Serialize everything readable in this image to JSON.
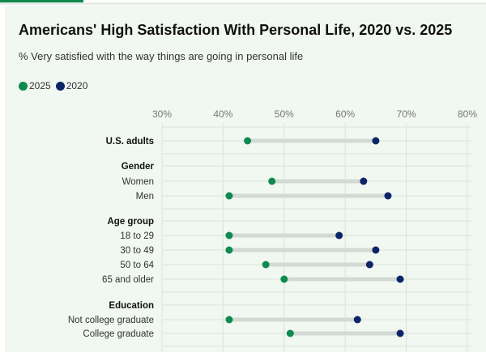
{
  "title": "Americans' High Satisfaction With Personal Life, 2020 vs. 2025",
  "subtitle": "% Very satisfied with the way things are going in personal life",
  "colors": {
    "2025": "#0f8a4f",
    "2020": "#0c2468",
    "connector": "#d3d9d4",
    "grid": "#dbe3dc",
    "background": "#f1f7f1"
  },
  "legend": [
    {
      "label": "2025",
      "color": "#0f8a4f"
    },
    {
      "label": "2020",
      "color": "#0c2468"
    }
  ],
  "chart_data": {
    "type": "dumbbell",
    "title": "Americans' High Satisfaction With Personal Life, 2020 vs. 2025",
    "subtitle": "% Very satisfied with the way things are going in personal life",
    "xlim": [
      30,
      80
    ],
    "x_ticks": [
      "30%",
      "40%",
      "50%",
      "60%",
      "70%",
      "80%"
    ],
    "x_tick_values": [
      30,
      40,
      50,
      60,
      70,
      80
    ],
    "grid": true,
    "legend_position": "top-left",
    "series_names": [
      "2025",
      "2020"
    ],
    "rows": [
      {
        "label": "U.S. adults",
        "header": true,
        "v2025": 44,
        "v2020": 65
      },
      {
        "label": "Gender",
        "header": true
      },
      {
        "label": "Women",
        "v2025": 48,
        "v2020": 63
      },
      {
        "label": "Men",
        "v2025": 41,
        "v2020": 67
      },
      {
        "label": "Age group",
        "header": true
      },
      {
        "label": "18 to 29",
        "v2025": 41,
        "v2020": 59
      },
      {
        "label": "30 to 49",
        "v2025": 41,
        "v2020": 65
      },
      {
        "label": "50 to 64",
        "v2025": 47,
        "v2020": 64
      },
      {
        "label": "65 and older",
        "v2025": 50,
        "v2020": 69
      },
      {
        "label": "Education",
        "header": true
      },
      {
        "label": "Not college graduate",
        "v2025": 41,
        "v2020": 62
      },
      {
        "label": "College graduate",
        "v2025": 51,
        "v2020": 69
      }
    ]
  }
}
